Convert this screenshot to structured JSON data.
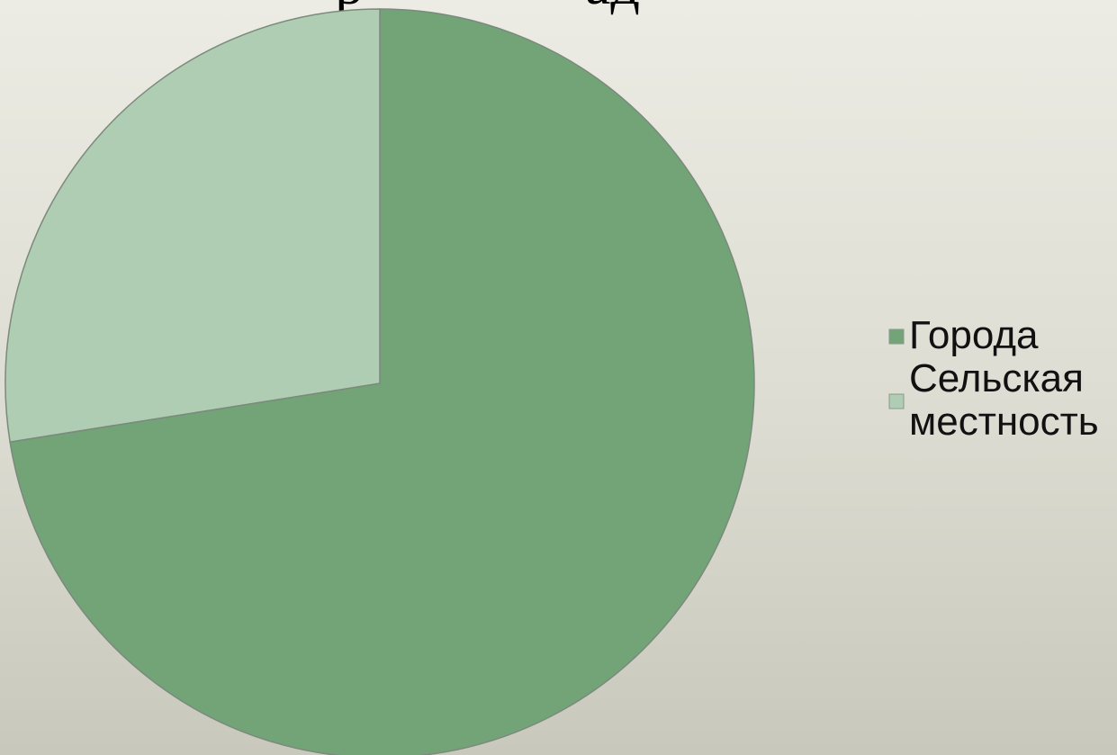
{
  "chart_data": {
    "type": "pie",
    "title": "",
    "start_angle_deg": 0,
    "direction": "clockwise",
    "categories": [
      "Города",
      "Сельская местность"
    ],
    "values": [
      72.5,
      27.5
    ],
    "colors": [
      "#72a478",
      "#afcdb2"
    ],
    "border_color": "#7b8a7c",
    "legend_position": "right",
    "legend": [
      {
        "lines": [
          "Города"
        ],
        "color": "#72a478"
      },
      {
        "lines": [
          "Сельская",
          "местность"
        ],
        "color": "#afcdb2"
      }
    ]
  }
}
